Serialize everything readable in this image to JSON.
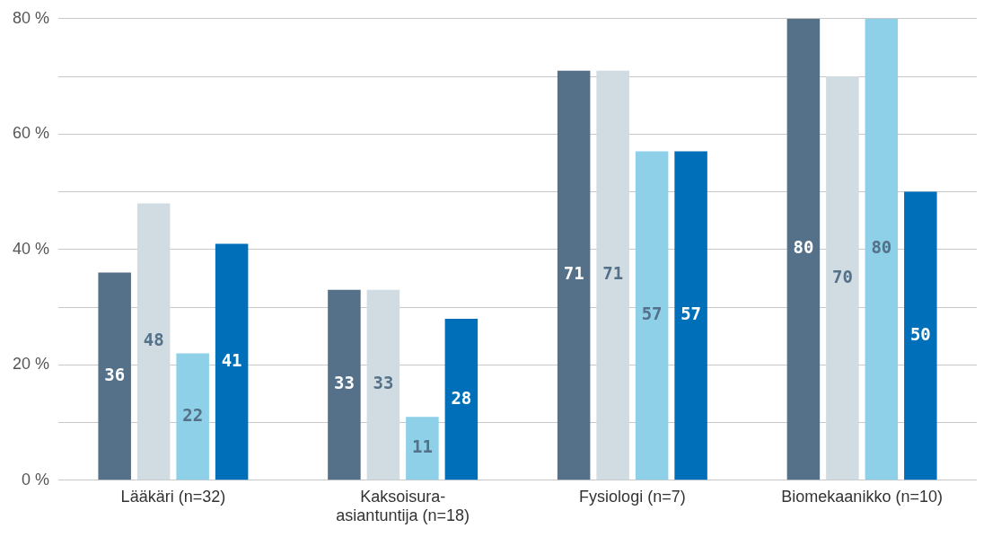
{
  "chart_data": {
    "type": "bar",
    "categories": [
      "Lääkäri (n=32)",
      "Kaksoisura-\nasiantuntija (n=18)",
      "Fysiologi (n=7)",
      "Biomekaanikko (n=10)"
    ],
    "series": [
      {
        "color": "#557089",
        "values": [
          36,
          33,
          71,
          80
        ]
      },
      {
        "color": "#d0dce2",
        "values": [
          48,
          33,
          71,
          70
        ]
      },
      {
        "color": "#8dd0e8",
        "values": [
          22,
          11,
          57,
          80
        ]
      },
      {
        "color": "#006fba",
        "values": [
          41,
          28,
          57,
          50
        ]
      }
    ],
    "ylim": [
      0,
      80
    ],
    "yticks": [
      {
        "value": 0,
        "label": "0 %"
      },
      {
        "value": 10,
        "label": null
      },
      {
        "value": 20,
        "label": "20 %"
      },
      {
        "value": 30,
        "label": null
      },
      {
        "value": 40,
        "label": "40 %"
      },
      {
        "value": 50,
        "label": null
      },
      {
        "value": 60,
        "label": "60 %"
      },
      {
        "value": 70,
        "label": null
      },
      {
        "value": 80,
        "label": "80 %"
      }
    ],
    "grid": "y",
    "legend": false,
    "data_labels": true
  }
}
